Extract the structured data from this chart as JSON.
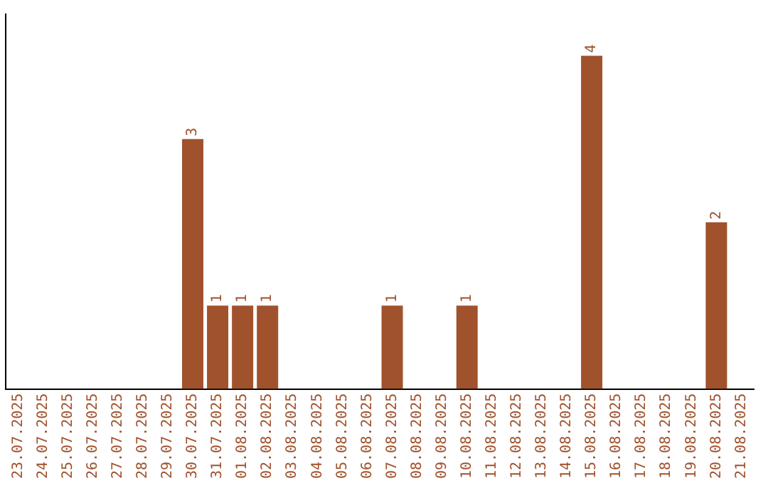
{
  "chart_data": {
    "type": "bar",
    "grid": false,
    "color": "#a0522d",
    "categories": [
      "23.07.2025",
      "24.07.2025",
      "25.07.2025",
      "26.07.2025",
      "27.07.2025",
      "28.07.2025",
      "29.07.2025",
      "30.07.2025",
      "31.07.2025",
      "01.08.2025",
      "02.08.2025",
      "03.08.2025",
      "04.08.2025",
      "05.08.2025",
      "06.08.2025",
      "07.08.2025",
      "08.08.2025",
      "09.08.2025",
      "10.08.2025",
      "11.08.2025",
      "12.08.2025",
      "13.08.2025",
      "14.08.2025",
      "15.08.2025",
      "16.08.2025",
      "17.08.2025",
      "18.08.2025",
      "19.08.2025",
      "20.08.2025",
      "21.08.2025"
    ],
    "values": [
      0,
      0,
      0,
      0,
      0,
      0,
      0,
      3,
      1,
      1,
      1,
      0,
      0,
      0,
      0,
      1,
      0,
      0,
      1,
      0,
      0,
      0,
      0,
      4,
      0,
      0,
      0,
      0,
      2,
      0
    ],
    "value_labels": [
      null,
      null,
      null,
      null,
      null,
      null,
      null,
      "3",
      "1",
      "1",
      "1",
      null,
      null,
      null,
      null,
      "1",
      null,
      null,
      "1",
      null,
      null,
      null,
      null,
      "4",
      null,
      null,
      null,
      null,
      "2",
      null
    ]
  }
}
